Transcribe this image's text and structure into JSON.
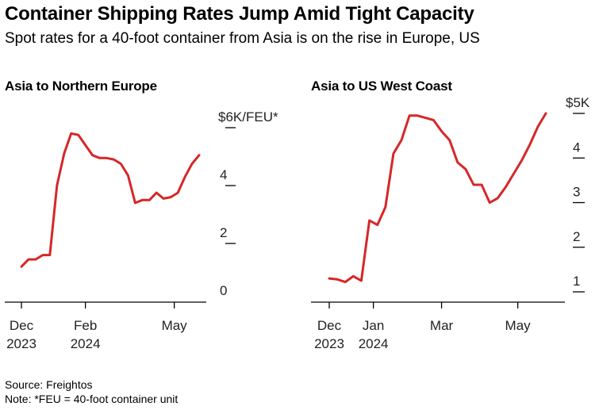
{
  "header": {
    "title": "Container Shipping Rates Jump Amid Tight Capacity",
    "subtitle": "Spot rates for a 40-foot container from Asia is on the rise in Europe, US"
  },
  "footer": {
    "source": "Source: Freightos",
    "note": "Note: *FEU = 40-foot container unit"
  },
  "colors": {
    "line": "#d62728",
    "axis": "#000000"
  },
  "chart_data": [
    {
      "type": "line",
      "title": "Asia to Northern Europe",
      "ylabel": "$6K/FEU*",
      "ylim": [
        0,
        6
      ],
      "yticks": [
        {
          "value": 6,
          "label": "$6K/FEU*"
        },
        {
          "value": 4,
          "label": "4"
        },
        {
          "value": 2,
          "label": "2"
        },
        {
          "value": 0,
          "label": "0"
        }
      ],
      "xlim": [
        0,
        25
      ],
      "xticks": [
        {
          "value": 0,
          "label": [
            "Dec",
            "2023"
          ]
        },
        {
          "value": 9,
          "label": [
            "Feb",
            "2024"
          ]
        },
        {
          "value": 21.5,
          "label": [
            "May",
            ""
          ]
        }
      ],
      "series": [
        {
          "name": "Asia to Northern Europe",
          "x": [
            0,
            1,
            2,
            3,
            4,
            5,
            6,
            7,
            8,
            9,
            10,
            11,
            12,
            13,
            14,
            15,
            16,
            17,
            18,
            19,
            20,
            21,
            22,
            23,
            24,
            25
          ],
          "y": [
            1.2,
            1.45,
            1.45,
            1.6,
            1.6,
            4.0,
            5.1,
            5.8,
            5.75,
            5.4,
            5.05,
            4.95,
            4.95,
            4.9,
            4.75,
            4.35,
            3.4,
            3.5,
            3.5,
            3.75,
            3.55,
            3.6,
            3.75,
            4.3,
            4.75,
            5.05
          ]
        }
      ]
    },
    {
      "type": "line",
      "title": "Asia to US West Coast",
      "ylabel": "$5K",
      "ylim": [
        1,
        5
      ],
      "yticks": [
        {
          "value": 5,
          "label": "$5K"
        },
        {
          "value": 4,
          "label": "4"
        },
        {
          "value": 3,
          "label": "3"
        },
        {
          "value": 2,
          "label": "2"
        },
        {
          "value": 1,
          "label": "1"
        }
      ],
      "xlim": [
        0,
        27
      ],
      "xticks": [
        {
          "value": 0,
          "label": [
            "Dec",
            "2023"
          ]
        },
        {
          "value": 5.5,
          "label": [
            "Jan",
            "2024"
          ]
        },
        {
          "value": 14,
          "label": [
            "Mar",
            ""
          ]
        },
        {
          "value": 23.5,
          "label": [
            "May",
            ""
          ]
        }
      ],
      "series": [
        {
          "name": "Asia to US West Coast",
          "x": [
            0,
            1,
            2,
            3,
            4,
            5,
            6,
            7,
            8,
            9,
            10,
            11,
            12,
            13,
            14,
            15,
            16,
            17,
            18,
            19,
            20,
            21,
            22,
            23,
            24,
            25,
            26,
            27
          ],
          "y": [
            1.3,
            1.28,
            1.22,
            1.35,
            1.25,
            2.6,
            2.5,
            2.9,
            4.1,
            4.4,
            4.95,
            4.95,
            4.9,
            4.85,
            4.6,
            4.4,
            3.9,
            3.75,
            3.4,
            3.4,
            3.0,
            3.1,
            3.35,
            3.65,
            3.95,
            4.3,
            4.7,
            5.0
          ]
        }
      ]
    }
  ]
}
